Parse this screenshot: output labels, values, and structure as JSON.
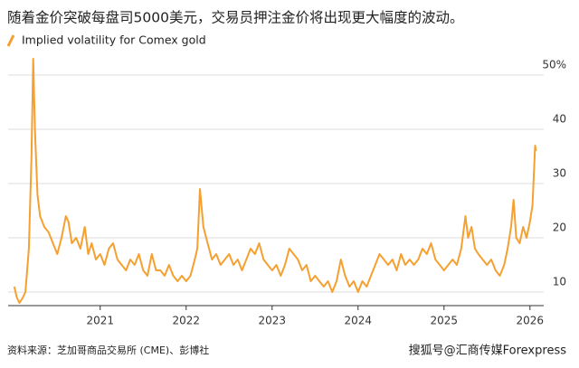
{
  "chart_data": {
    "type": "line",
    "title": "随着金价突破每盘司5000美元，交易员押注金价将出现更大幅度的波动。",
    "source": "资料来源：芝加哥商品交易所 (CME)、彭博社",
    "watermark": "搜狐号@汇商传媒Forexpress",
    "x": [
      2020.0,
      2020.03,
      2020.06,
      2020.1,
      2020.13,
      2020.17,
      2020.2,
      2020.22,
      2020.24,
      2020.27,
      2020.3,
      2020.35,
      2020.4,
      2020.45,
      2020.5,
      2020.55,
      2020.6,
      2020.63,
      2020.67,
      2020.72,
      2020.77,
      2020.82,
      2020.86,
      2020.9,
      2020.95,
      2021.0,
      2021.05,
      2021.1,
      2021.15,
      2021.2,
      2021.25,
      2021.3,
      2021.35,
      2021.4,
      2021.45,
      2021.5,
      2021.55,
      2021.6,
      2021.65,
      2021.7,
      2021.75,
      2021.8,
      2021.85,
      2021.9,
      2021.95,
      2022.0,
      2022.05,
      2022.1,
      2022.13,
      2022.16,
      2022.2,
      2022.25,
      2022.3,
      2022.35,
      2022.4,
      2022.45,
      2022.5,
      2022.55,
      2022.6,
      2022.65,
      2022.7,
      2022.75,
      2022.8,
      2022.85,
      2022.9,
      2022.95,
      2023.0,
      2023.05,
      2023.1,
      2023.15,
      2023.2,
      2023.25,
      2023.3,
      2023.35,
      2023.4,
      2023.45,
      2023.5,
      2023.55,
      2023.6,
      2023.65,
      2023.7,
      2023.75,
      2023.8,
      2023.85,
      2023.9,
      2023.95,
      2024.0,
      2024.05,
      2024.1,
      2024.15,
      2024.2,
      2024.25,
      2024.3,
      2024.35,
      2024.4,
      2024.45,
      2024.5,
      2024.55,
      2024.6,
      2024.65,
      2024.7,
      2024.75,
      2024.8,
      2024.85,
      2024.9,
      2024.95,
      2025.0,
      2025.05,
      2025.1,
      2025.15,
      2025.2,
      2025.25,
      2025.28,
      2025.32,
      2025.36,
      2025.4,
      2025.45,
      2025.5,
      2025.55,
      2025.6,
      2025.65,
      2025.7,
      2025.74,
      2025.78,
      2025.81,
      2025.84,
      2025.88,
      2025.92,
      2025.96,
      2026.0,
      2026.03,
      2026.06,
      2026.07
    ],
    "series": [
      {
        "name": "Implied volatility for Comex gold",
        "color": "#f5a030",
        "values": [
          11,
          9,
          8,
          9,
          10,
          18,
          35,
          53,
          40,
          28,
          24,
          22,
          21,
          19,
          17,
          20,
          24,
          23,
          19,
          20,
          18,
          22,
          17,
          19,
          16,
          17,
          15,
          18,
          19,
          16,
          15,
          14,
          16,
          15,
          17,
          14,
          13,
          17,
          14,
          14,
          13,
          15,
          13,
          12,
          13,
          12,
          13,
          16,
          18,
          29,
          22,
          19,
          16,
          17,
          15,
          16,
          17,
          15,
          16,
          14,
          16,
          18,
          17,
          19,
          16,
          15,
          14,
          15,
          13,
          15,
          18,
          17,
          16,
          14,
          15,
          12,
          13,
          12,
          11,
          12,
          10,
          12,
          16,
          13,
          11,
          12,
          10,
          12,
          11,
          13,
          15,
          17,
          16,
          15,
          16,
          14,
          17,
          15,
          16,
          15,
          16,
          18,
          17,
          19,
          16,
          15,
          14,
          15,
          16,
          15,
          18,
          24,
          20,
          22,
          18,
          17,
          16,
          15,
          16,
          14,
          13,
          15,
          18,
          22,
          27,
          20,
          19,
          22,
          20,
          23,
          26,
          37,
          36
        ]
      }
    ],
    "xlim": [
      2019.95,
      2026.16
    ],
    "xticks": [
      2021,
      2022,
      2023,
      2024,
      2025,
      2026
    ],
    "ylim": [
      7.5,
      54
    ],
    "yticks": [
      10,
      20,
      30,
      40,
      {
        "value": 50,
        "label": "50%"
      }
    ],
    "grid": true
  }
}
